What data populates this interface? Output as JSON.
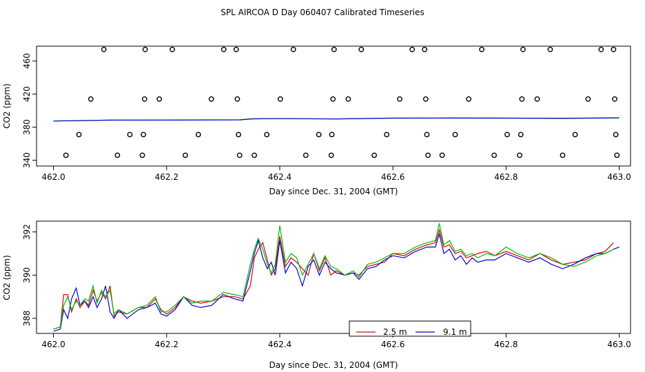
{
  "title": "SPL AIRCOA D  Day 060407  Calibrated Timeseries",
  "chart_data": [
    {
      "type": "scatter",
      "id": "top",
      "xlabel": "Day since Dec. 31, 2004 (GMT)",
      "ylabel": "CO2 (ppm)",
      "xlim": [
        461.97,
        463.02
      ],
      "ylim": [
        333,
        478
      ],
      "xticks": [
        462.0,
        462.2,
        462.4,
        462.6,
        462.8,
        463.0
      ],
      "xtick_labels": [
        "462.0",
        "462.2",
        "462.4",
        "462.6",
        "462.8",
        "463.0"
      ],
      "yticks": [
        340,
        380,
        420,
        460
      ],
      "ytick_labels": [
        "340",
        "380",
        "420",
        "460"
      ],
      "points": [
        {
          "x": 462.022,
          "y": 346
        },
        {
          "x": 462.045,
          "y": 371
        },
        {
          "x": 462.066,
          "y": 414
        },
        {
          "x": 462.089,
          "y": 474
        },
        {
          "x": 462.113,
          "y": 346
        },
        {
          "x": 462.135,
          "y": 371
        },
        {
          "x": 462.157,
          "y": 346
        },
        {
          "x": 462.159,
          "y": 371
        },
        {
          "x": 462.161,
          "y": 414
        },
        {
          "x": 462.162,
          "y": 474
        },
        {
          "x": 462.187,
          "y": 414
        },
        {
          "x": 462.21,
          "y": 474
        },
        {
          "x": 462.233,
          "y": 346
        },
        {
          "x": 462.256,
          "y": 371
        },
        {
          "x": 462.279,
          "y": 414
        },
        {
          "x": 462.301,
          "y": 474
        },
        {
          "x": 462.323,
          "y": 474
        },
        {
          "x": 462.325,
          "y": 414
        },
        {
          "x": 462.327,
          "y": 371
        },
        {
          "x": 462.329,
          "y": 346
        },
        {
          "x": 462.355,
          "y": 346
        },
        {
          "x": 462.377,
          "y": 371
        },
        {
          "x": 462.401,
          "y": 414
        },
        {
          "x": 462.424,
          "y": 474
        },
        {
          "x": 462.446,
          "y": 346
        },
        {
          "x": 462.469,
          "y": 371
        },
        {
          "x": 462.491,
          "y": 346
        },
        {
          "x": 462.492,
          "y": 371
        },
        {
          "x": 462.494,
          "y": 414
        },
        {
          "x": 462.496,
          "y": 474
        },
        {
          "x": 462.521,
          "y": 414
        },
        {
          "x": 462.544,
          "y": 474
        },
        {
          "x": 462.567,
          "y": 346
        },
        {
          "x": 462.589,
          "y": 371
        },
        {
          "x": 462.612,
          "y": 414
        },
        {
          "x": 462.634,
          "y": 474
        },
        {
          "x": 462.656,
          "y": 474
        },
        {
          "x": 462.658,
          "y": 414
        },
        {
          "x": 462.66,
          "y": 371
        },
        {
          "x": 462.662,
          "y": 346
        },
        {
          "x": 462.687,
          "y": 346
        },
        {
          "x": 462.71,
          "y": 371
        },
        {
          "x": 462.734,
          "y": 414
        },
        {
          "x": 462.757,
          "y": 474
        },
        {
          "x": 462.779,
          "y": 346
        },
        {
          "x": 462.802,
          "y": 371
        },
        {
          "x": 462.824,
          "y": 346
        },
        {
          "x": 462.826,
          "y": 371
        },
        {
          "x": 462.828,
          "y": 414
        },
        {
          "x": 462.83,
          "y": 474
        },
        {
          "x": 462.855,
          "y": 414
        },
        {
          "x": 462.878,
          "y": 474
        },
        {
          "x": 462.9,
          "y": 346
        },
        {
          "x": 462.922,
          "y": 371
        },
        {
          "x": 462.945,
          "y": 414
        },
        {
          "x": 462.968,
          "y": 474
        },
        {
          "x": 462.99,
          "y": 474
        },
        {
          "x": 462.992,
          "y": 414
        },
        {
          "x": 462.994,
          "y": 371
        },
        {
          "x": 462.996,
          "y": 346
        }
      ],
      "series": [
        {
          "name": "2.5 m",
          "color": "#00cc00",
          "x": [
            462.0,
            462.1,
            462.2,
            462.33,
            462.35,
            462.4,
            462.5,
            462.6,
            462.7,
            462.8,
            462.9,
            463.0
          ],
          "values": [
            387.5,
            388.6,
            388.7,
            388.9,
            390.2,
            390.4,
            390.0,
            391.0,
            391.2,
            391.0,
            390.9,
            391.2
          ]
        },
        {
          "name": "9.1 m",
          "color": "#0000cc",
          "x": [
            462.0,
            462.1,
            462.2,
            462.33,
            462.35,
            462.4,
            462.5,
            462.6,
            462.7,
            462.8,
            462.9,
            463.0
          ],
          "values": [
            387.4,
            388.5,
            388.6,
            388.8,
            390.0,
            390.3,
            389.9,
            390.9,
            391.0,
            390.9,
            390.6,
            391.3
          ]
        }
      ]
    },
    {
      "type": "line",
      "id": "bottom",
      "xlabel": "Day since Dec. 31, 2004 (GMT)",
      "ylabel": "CO2 (ppm)",
      "xlim": [
        461.97,
        463.02
      ],
      "ylim": [
        387.3,
        392.5
      ],
      "xticks": [
        462.0,
        462.2,
        462.4,
        462.6,
        462.8,
        463.0
      ],
      "xtick_labels": [
        "462.0",
        "462.2",
        "462.4",
        "462.6",
        "462.8",
        "463.0"
      ],
      "yticks": [
        388,
        390,
        392
      ],
      "ytick_labels": [
        "388",
        "390",
        "392"
      ],
      "legend": {
        "placement": "bottom-center",
        "entries": [
          {
            "label": "2.5 m",
            "color": "#dd0000"
          },
          {
            "label": "9.1 m",
            "color": "#0000cc"
          }
        ]
      },
      "series": [
        {
          "name": "2.5 m",
          "color": "#dd0000",
          "x": [
            462.0,
            462.012,
            462.018,
            462.025,
            462.032,
            462.04,
            462.047,
            462.055,
            462.062,
            462.07,
            462.077,
            462.085,
            462.092,
            462.1,
            462.107,
            462.115,
            462.13,
            462.15,
            462.165,
            462.18,
            462.19,
            462.2,
            462.215,
            462.23,
            462.245,
            462.26,
            462.28,
            462.3,
            462.32,
            462.335,
            462.348,
            462.355,
            462.362,
            462.37,
            462.378,
            462.385,
            462.392,
            462.4,
            462.41,
            462.42,
            462.43,
            462.44,
            462.45,
            462.46,
            462.47,
            462.48,
            462.49,
            462.5,
            462.515,
            462.53,
            462.54,
            462.555,
            462.57,
            462.585,
            462.6,
            462.62,
            462.64,
            462.66,
            462.675,
            462.682,
            462.69,
            462.7,
            462.71,
            462.72,
            462.73,
            462.74,
            462.75,
            462.765,
            462.78,
            462.8,
            462.82,
            462.84,
            462.86,
            462.88,
            462.9,
            462.92,
            462.94,
            462.96,
            462.975,
            462.99
          ],
          "values": [
            387.5,
            387.6,
            389.1,
            389.1,
            388.3,
            388.9,
            388.5,
            388.8,
            388.6,
            389.3,
            388.8,
            389.2,
            388.9,
            389.5,
            388.1,
            388.3,
            388.2,
            388.5,
            388.5,
            388.9,
            388.4,
            388.2,
            388.5,
            389.0,
            388.8,
            388.7,
            388.8,
            389.0,
            389.0,
            388.9,
            389.5,
            390.8,
            391.2,
            391.5,
            390.7,
            390.0,
            390.3,
            391.8,
            390.4,
            390.8,
            390.6,
            390.3,
            390.0,
            391.0,
            390.2,
            390.8,
            390.0,
            390.2,
            390.0,
            390.1,
            390.0,
            390.4,
            390.5,
            390.6,
            391.0,
            390.9,
            391.2,
            391.4,
            391.5,
            392.1,
            391.3,
            391.4,
            391.0,
            391.1,
            390.8,
            390.9,
            391.0,
            391.1,
            390.9,
            391.1,
            390.9,
            390.7,
            391.0,
            390.7,
            390.5,
            390.6,
            390.7,
            391.0,
            391.1,
            391.5
          ]
        },
        {
          "name": "9.1 m",
          "color": "#0000cc",
          "x": [
            462.0,
            462.012,
            462.018,
            462.025,
            462.032,
            462.04,
            462.047,
            462.055,
            462.062,
            462.07,
            462.077,
            462.085,
            462.092,
            462.1,
            462.107,
            462.115,
            462.13,
            462.15,
            462.165,
            462.18,
            462.19,
            462.2,
            462.215,
            462.23,
            462.245,
            462.26,
            462.28,
            462.3,
            462.32,
            462.335,
            462.348,
            462.355,
            462.362,
            462.37,
            462.378,
            462.385,
            462.392,
            462.4,
            462.41,
            462.42,
            462.43,
            462.44,
            462.45,
            462.46,
            462.47,
            462.48,
            462.49,
            462.5,
            462.515,
            462.53,
            462.54,
            462.555,
            462.57,
            462.585,
            462.6,
            462.62,
            462.64,
            462.66,
            462.675,
            462.682,
            462.69,
            462.7,
            462.71,
            462.72,
            462.73,
            462.74,
            462.75,
            462.765,
            462.78,
            462.8,
            462.82,
            462.84,
            462.86,
            462.88,
            462.9,
            462.92,
            462.94,
            462.96,
            462.975,
            462.99,
            463.0
          ],
          "values": [
            387.4,
            387.5,
            388.4,
            388.0,
            388.9,
            389.4,
            388.6,
            388.8,
            388.5,
            389.0,
            388.5,
            388.9,
            389.5,
            388.3,
            388.0,
            388.4,
            388.0,
            388.4,
            388.5,
            388.7,
            388.2,
            388.1,
            388.4,
            389.0,
            388.6,
            388.5,
            388.6,
            389.1,
            388.9,
            388.8,
            390.2,
            391.0,
            391.6,
            390.8,
            390.3,
            390.6,
            390.0,
            391.6,
            390.1,
            390.6,
            390.3,
            389.5,
            390.4,
            390.7,
            390.0,
            390.6,
            390.3,
            390.1,
            390.0,
            390.1,
            389.8,
            390.3,
            390.4,
            390.7,
            390.9,
            390.8,
            391.1,
            391.3,
            391.3,
            391.9,
            391.0,
            391.2,
            390.7,
            390.9,
            390.5,
            390.8,
            390.6,
            390.7,
            390.7,
            391.0,
            390.8,
            390.6,
            390.8,
            390.5,
            390.3,
            390.5,
            390.8,
            391.0,
            391.0,
            391.2,
            391.3
          ]
        },
        {
          "name": "green",
          "color": "#00bb00",
          "x": [
            462.0,
            462.012,
            462.018,
            462.025,
            462.032,
            462.04,
            462.047,
            462.055,
            462.062,
            462.07,
            462.077,
            462.085,
            462.092,
            462.1,
            462.107,
            462.115,
            462.13,
            462.15,
            462.165,
            462.18,
            462.19,
            462.2,
            462.215,
            462.23,
            462.245,
            462.26,
            462.28,
            462.3,
            462.32,
            462.335,
            462.348,
            462.355,
            462.362,
            462.37,
            462.378,
            462.385,
            462.392,
            462.4,
            462.41,
            462.42,
            462.43,
            462.44,
            462.45,
            462.46,
            462.47,
            462.48,
            462.49,
            462.5,
            462.515,
            462.53,
            462.54,
            462.555,
            462.57,
            462.585,
            462.6,
            462.62,
            462.64,
            462.66,
            462.675,
            462.682,
            462.69,
            462.7,
            462.71,
            462.72,
            462.73,
            462.74,
            462.75,
            462.765,
            462.78,
            462.8,
            462.82,
            462.84,
            462.86,
            462.88,
            462.9,
            462.92,
            462.94,
            462.96,
            462.975,
            462.99
          ],
          "values": [
            387.5,
            387.6,
            388.6,
            389.0,
            388.4,
            388.8,
            388.6,
            388.9,
            388.8,
            389.5,
            388.7,
            389.3,
            389.0,
            389.3,
            388.2,
            388.4,
            388.2,
            388.5,
            388.6,
            389.0,
            388.3,
            388.3,
            388.6,
            389.0,
            388.7,
            388.8,
            388.8,
            389.2,
            389.1,
            389.0,
            390.5,
            391.2,
            391.7,
            391.2,
            390.5,
            390.1,
            390.5,
            392.3,
            390.6,
            391.0,
            390.8,
            390.0,
            390.5,
            391.0,
            390.3,
            390.9,
            390.4,
            390.3,
            390.0,
            390.2,
            389.9,
            390.5,
            390.6,
            390.8,
            391.0,
            391.0,
            391.3,
            391.5,
            391.6,
            392.4,
            391.4,
            391.6,
            391.1,
            391.2,
            390.9,
            391.0,
            390.8,
            391.0,
            390.9,
            391.3,
            391.0,
            390.8,
            391.0,
            390.8,
            390.5,
            390.4,
            390.6,
            390.9,
            391.0,
            391.2
          ]
        }
      ]
    }
  ]
}
